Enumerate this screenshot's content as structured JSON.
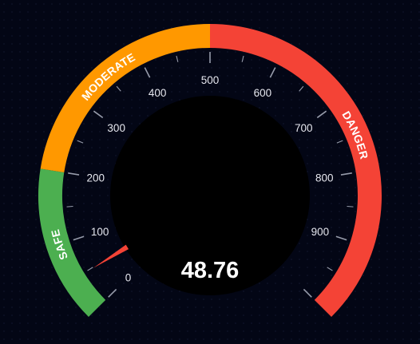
{
  "gauge": {
    "value": 48.76,
    "value_text": "48.76",
    "min": 0,
    "max": 1000,
    "tick_labels": [
      "0",
      "100",
      "200",
      "300",
      "400",
      "500",
      "600",
      "700",
      "800",
      "900"
    ],
    "bands": [
      {
        "label": "SAFE",
        "from": 0,
        "to": 200,
        "color": "#4caf50"
      },
      {
        "label": "MODERATE",
        "from": 200,
        "to": 500,
        "color": "#ff9800"
      },
      {
        "label": "DANGER",
        "from": 500,
        "to": 1000,
        "color": "#f44336"
      }
    ],
    "needle_color": "#f44336",
    "background_color": "#030615",
    "hub_color": "#000000"
  }
}
